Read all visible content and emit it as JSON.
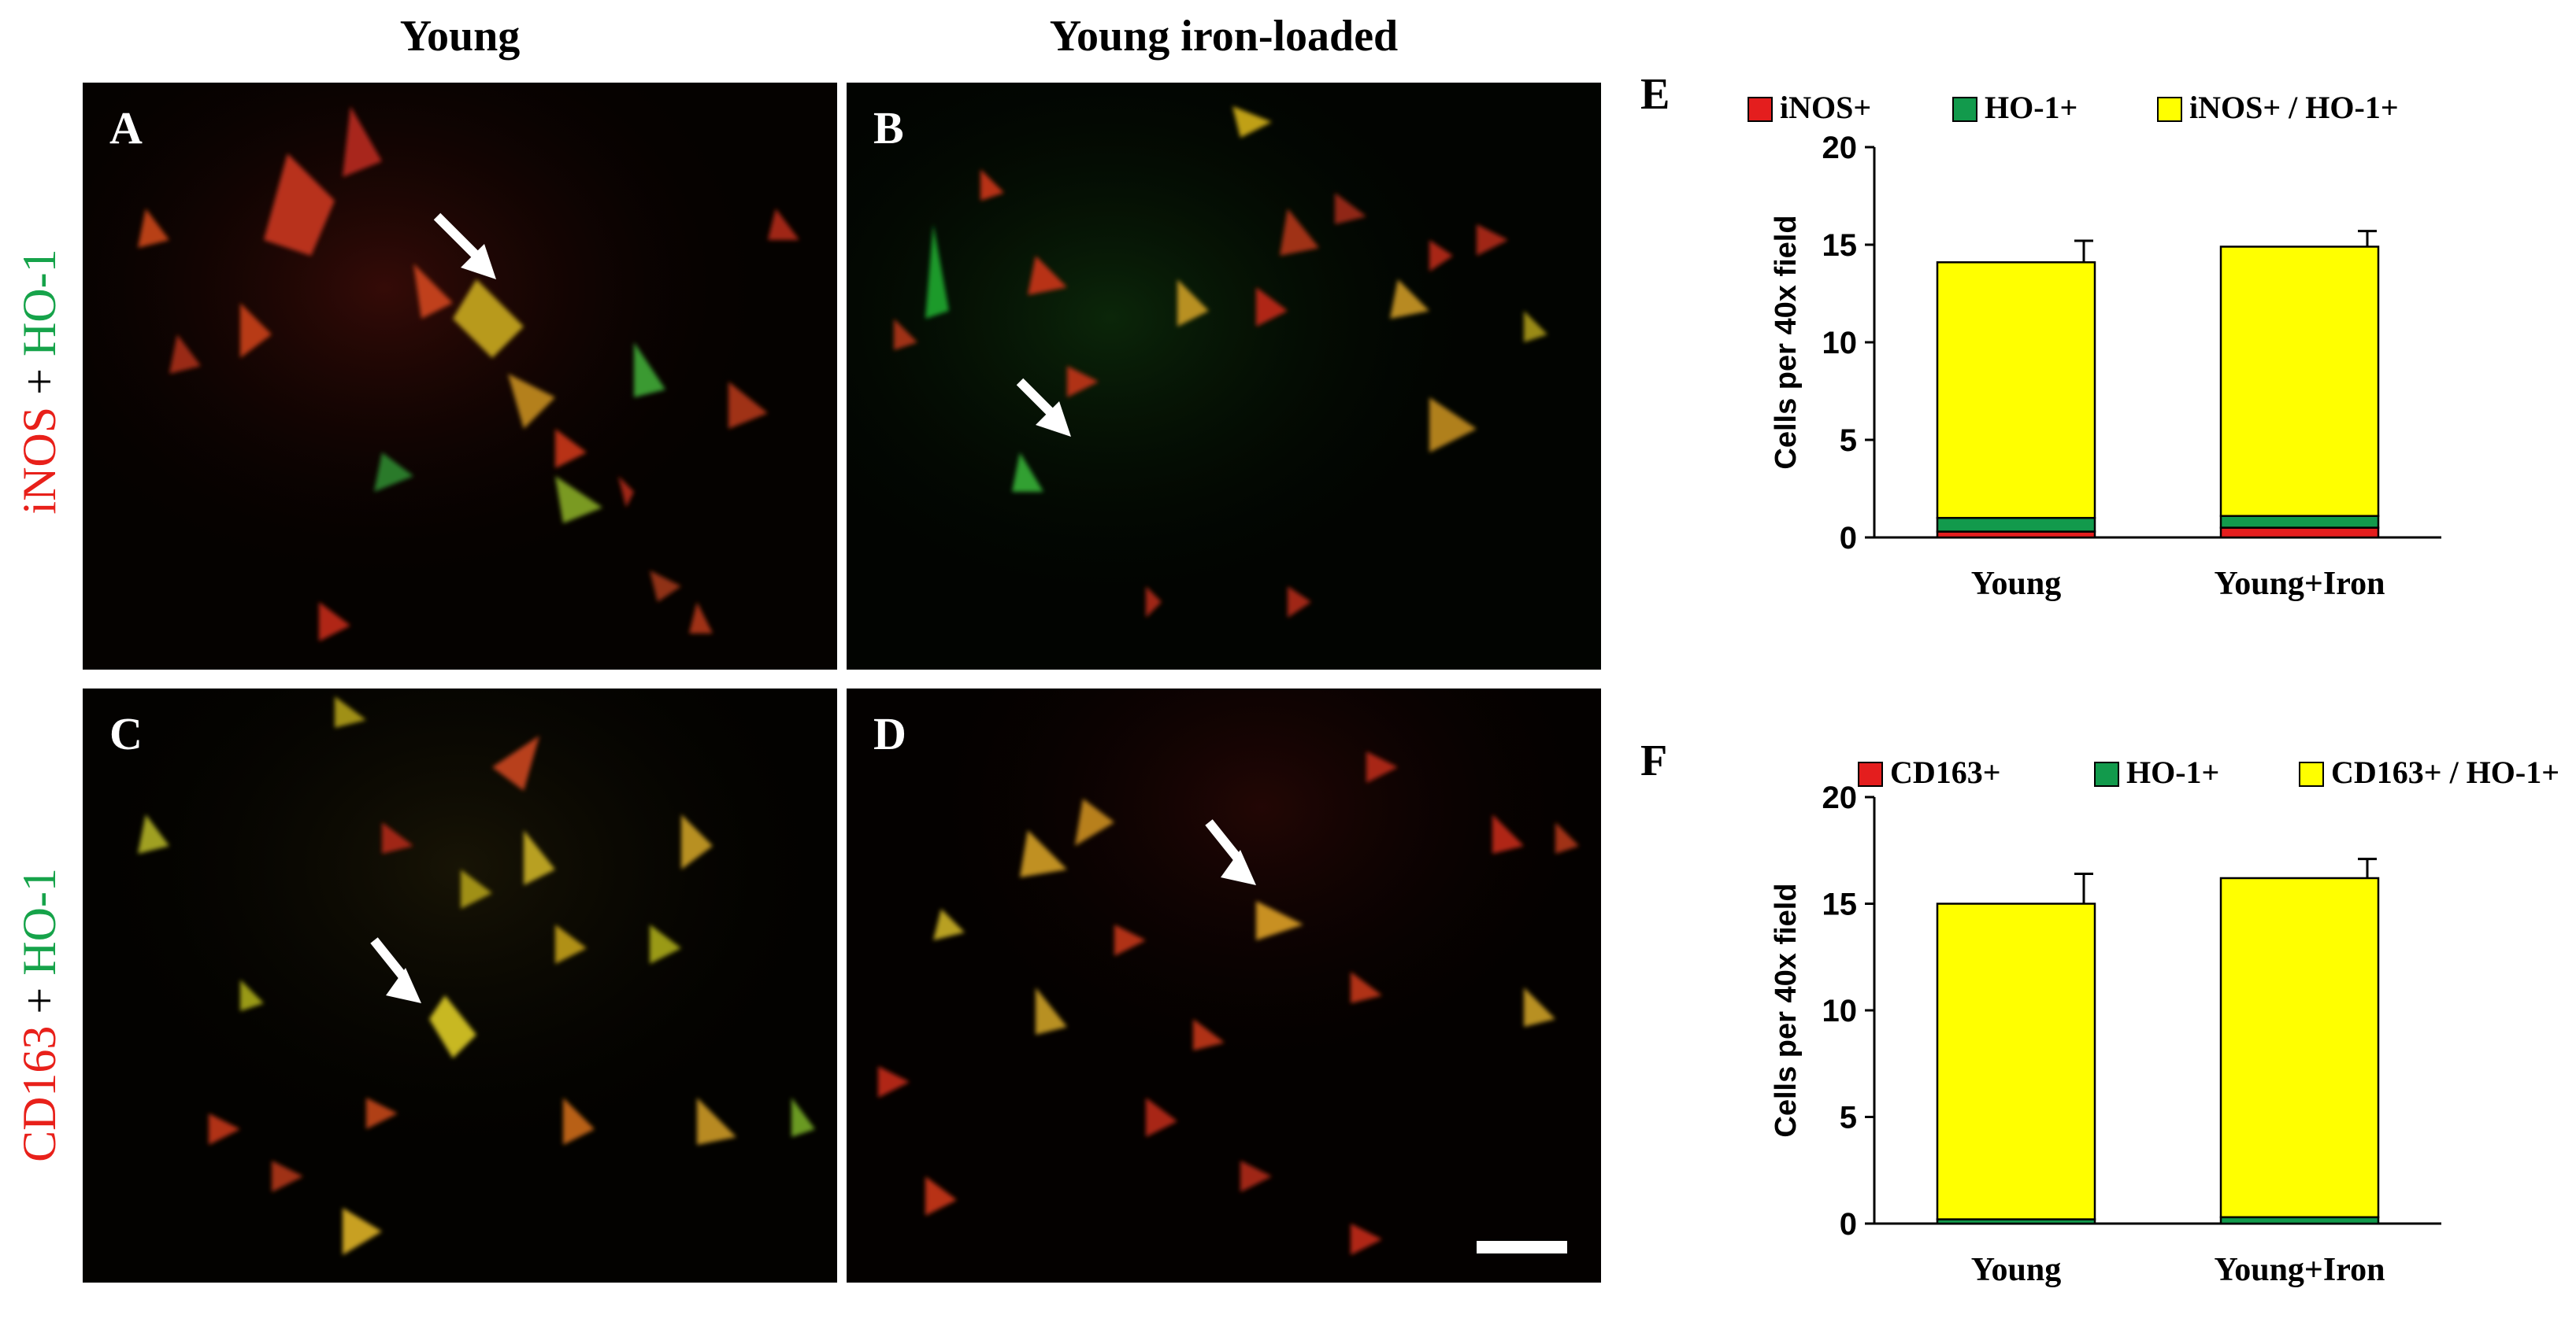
{
  "columns": {
    "left": "Young",
    "right": "Young iron-loaded"
  },
  "rows": [
    {
      "marker_red": "iNOS",
      "plus": " + ",
      "marker_green": "HO-1"
    },
    {
      "marker_red": "CD163",
      "plus": " + ",
      "marker_green": "HO-1"
    }
  ],
  "panels": {
    "a": "A",
    "b": "B",
    "c": "C",
    "d": "D"
  },
  "colors": {
    "red_marker": "#e8201a",
    "green_marker": "#16a34a",
    "bar_red": "#e41e1e",
    "bar_green": "#129a4c",
    "bar_yellow": "#ffff00"
  },
  "chart_data": [
    {
      "letter": "E",
      "type": "bar",
      "stacked": true,
      "categories": [
        "Young",
        "Young+Iron"
      ],
      "series": [
        {
          "name": "iNOS+",
          "color": "#e41e1e",
          "values": [
            0.3,
            0.5
          ]
        },
        {
          "name": "HO-1+",
          "color": "#129a4c",
          "values": [
            0.7,
            0.6
          ]
        },
        {
          "name": "iNOS+ / HO-1+",
          "color": "#ffff00",
          "values": [
            13.1,
            13.8
          ]
        }
      ],
      "errors_top": [
        1.1,
        0.8
      ],
      "ylabel": "Cells per 40x field",
      "ylim": [
        0,
        20
      ],
      "yticks": [
        0,
        5,
        10,
        15,
        20
      ],
      "legend": "top",
      "grid": false
    },
    {
      "letter": "F",
      "type": "bar",
      "stacked": true,
      "categories": [
        "Young",
        "Young+Iron"
      ],
      "series": [
        {
          "name": "CD163+",
          "color": "#e41e1e",
          "values": [
            0.0,
            0.0
          ]
        },
        {
          "name": "HO-1+",
          "color": "#129a4c",
          "values": [
            0.2,
            0.3
          ]
        },
        {
          "name": "CD163+ / HO-1+",
          "color": "#ffff00",
          "values": [
            14.8,
            15.9
          ]
        }
      ],
      "errors_top": [
        1.4,
        0.9
      ],
      "ylabel": "Cells per 40x field",
      "ylim": [
        0,
        20
      ],
      "yticks": [
        0,
        5,
        10,
        15,
        20
      ],
      "legend": "top",
      "grid": false
    }
  ]
}
